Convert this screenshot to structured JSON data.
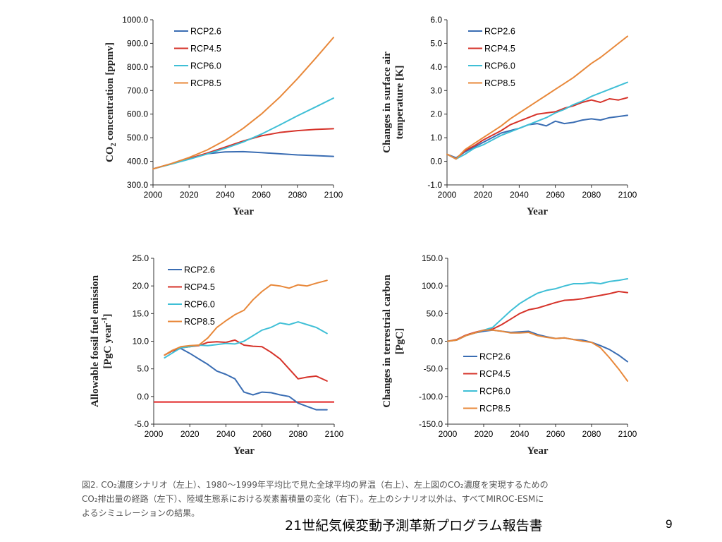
{
  "colors": {
    "RCP2.6": "#3a6db3",
    "RCP4.5": "#d6332a",
    "RCP6.0": "#3fbfd6",
    "RCP8.5": "#e8883a",
    "zero_line": "#e02020",
    "axis": "#333333"
  },
  "chart_data": [
    {
      "type": "line",
      "ylabel": "CO2 concentration [ppmv]",
      "xlabel": "Year",
      "xlim": [
        2000,
        2100
      ],
      "ylim": [
        300,
        1000
      ],
      "xticks": [
        "2000",
        "2020",
        "2040",
        "2060",
        "2080",
        "2100"
      ],
      "yticks": [
        "300.0",
        "400.0",
        "500.0",
        "600.0",
        "700.0",
        "800.0",
        "900.0",
        "1000.0"
      ],
      "legend_position": "top-left",
      "grid": false,
      "x": [
        2000,
        2010,
        2020,
        2030,
        2040,
        2050,
        2060,
        2070,
        2080,
        2090,
        2100
      ],
      "series": [
        {
          "name": "RCP2.6",
          "values": [
            368,
            389,
            412,
            432,
            440,
            441,
            437,
            432,
            427,
            424,
            421
          ]
        },
        {
          "name": "RCP4.5",
          "values": [
            368,
            389,
            412,
            435,
            460,
            486,
            508,
            522,
            530,
            535,
            538
          ]
        },
        {
          "name": "RCP6.0",
          "values": [
            368,
            388,
            409,
            431,
            455,
            482,
            515,
            553,
            593,
            630,
            668
          ]
        },
        {
          "name": "RCP8.5",
          "values": [
            368,
            390,
            416,
            448,
            489,
            540,
            600,
            670,
            750,
            836,
            925
          ]
        }
      ]
    },
    {
      "type": "line",
      "ylabel": "Changes in surface air temperature [K]",
      "xlabel": "Year",
      "xlim": [
        2000,
        2100
      ],
      "ylim": [
        -1,
        6
      ],
      "xticks": [
        "2000",
        "2020",
        "2040",
        "2060",
        "2080",
        "2100"
      ],
      "yticks": [
        "-1.0",
        "0.0",
        "1.0",
        "2.0",
        "3.0",
        "4.0",
        "5.0",
        "6.0"
      ],
      "legend_position": "top-left",
      "grid": false,
      "x": [
        2000,
        2005,
        2010,
        2015,
        2020,
        2025,
        2030,
        2035,
        2040,
        2045,
        2050,
        2055,
        2060,
        2065,
        2070,
        2075,
        2080,
        2085,
        2090,
        2095,
        2100
      ],
      "series": [
        {
          "name": "RCP2.6",
          "values": [
            0.3,
            0.15,
            0.4,
            0.6,
            0.8,
            1.0,
            1.2,
            1.3,
            1.4,
            1.55,
            1.6,
            1.5,
            1.7,
            1.6,
            1.65,
            1.75,
            1.8,
            1.75,
            1.85,
            1.9,
            1.95
          ]
        },
        {
          "name": "RCP4.5",
          "values": [
            0.3,
            0.1,
            0.45,
            0.65,
            0.9,
            1.1,
            1.3,
            1.55,
            1.7,
            1.85,
            2.0,
            2.05,
            2.1,
            2.25,
            2.35,
            2.5,
            2.6,
            2.5,
            2.65,
            2.6,
            2.7
          ]
        },
        {
          "name": "RCP6.0",
          "values": [
            0.3,
            0.1,
            0.3,
            0.55,
            0.7,
            0.9,
            1.1,
            1.25,
            1.4,
            1.55,
            1.7,
            1.85,
            2.05,
            2.2,
            2.4,
            2.55,
            2.75,
            2.9,
            3.05,
            3.2,
            3.35
          ]
        },
        {
          "name": "RCP8.5",
          "values": [
            0.3,
            0.1,
            0.5,
            0.75,
            1.0,
            1.25,
            1.5,
            1.8,
            2.05,
            2.3,
            2.55,
            2.8,
            3.05,
            3.3,
            3.55,
            3.85,
            4.15,
            4.4,
            4.7,
            5.0,
            5.3
          ]
        }
      ]
    },
    {
      "type": "line",
      "ylabel": "Allowable fossil fuel emission [PgC year-1]",
      "xlabel": "Year",
      "xlim": [
        2000,
        2100
      ],
      "ylim": [
        -5,
        25
      ],
      "xticks": [
        "2000",
        "2020",
        "2040",
        "2060",
        "2080",
        "2100"
      ],
      "yticks": [
        "-5.0",
        "0.0",
        "5.0",
        "10.0",
        "15.0",
        "20.0",
        "25.0"
      ],
      "legend_position": "top-left",
      "grid": false,
      "reference_line_y": -1,
      "x": [
        2006,
        2010,
        2015,
        2020,
        2025,
        2030,
        2035,
        2040,
        2045,
        2050,
        2055,
        2060,
        2065,
        2070,
        2075,
        2080,
        2085,
        2090,
        2096
      ],
      "series": [
        {
          "name": "RCP2.6",
          "values": [
            7.5,
            8.2,
            8.7,
            7.8,
            6.8,
            5.8,
            4.6,
            4.0,
            3.2,
            0.8,
            0.3,
            0.8,
            0.7,
            0.3,
            0.0,
            -1.2,
            -1.8,
            -2.4,
            -2.4
          ]
        },
        {
          "name": "RCP4.5",
          "values": [
            7.5,
            8.2,
            8.8,
            9.0,
            9.2,
            9.8,
            9.9,
            9.8,
            10.2,
            9.3,
            9.1,
            9.0,
            8.0,
            6.8,
            5.0,
            3.2,
            3.5,
            3.7,
            2.8
          ]
        },
        {
          "name": "RCP6.0",
          "values": [
            7.0,
            7.8,
            8.8,
            9.0,
            9.3,
            9.2,
            9.4,
            9.6,
            9.5,
            10.0,
            11.0,
            12.0,
            12.5,
            13.3,
            13.0,
            13.5,
            13.0,
            12.5,
            11.4
          ]
        },
        {
          "name": "RCP8.5",
          "values": [
            7.5,
            8.3,
            9.0,
            9.2,
            9.3,
            10.6,
            12.5,
            13.7,
            14.8,
            15.6,
            17.5,
            19.0,
            20.2,
            20.0,
            19.6,
            20.2,
            20.0,
            20.5,
            21.0
          ]
        }
      ]
    },
    {
      "type": "line",
      "ylabel": "Changes in terrestrial carbon [PgC]",
      "xlabel": "Year",
      "xlim": [
        2000,
        2100
      ],
      "ylim": [
        -150,
        150
      ],
      "xticks": [
        "2000",
        "2020",
        "2040",
        "2060",
        "2080",
        "2100"
      ],
      "yticks": [
        "-150.0",
        "-100.0",
        "-50.0",
        "0.0",
        "50.0",
        "100.0",
        "150.0"
      ],
      "legend_position": "bottom-left",
      "grid": false,
      "x": [
        2000,
        2005,
        2010,
        2015,
        2020,
        2025,
        2030,
        2035,
        2040,
        2045,
        2050,
        2055,
        2060,
        2065,
        2070,
        2075,
        2080,
        2085,
        2090,
        2095,
        2100
      ],
      "series": [
        {
          "name": "RCP2.6",
          "values": [
            0,
            2,
            10,
            15,
            18,
            20,
            18,
            16,
            17,
            18,
            12,
            8,
            5,
            6,
            3,
            2,
            -2,
            -8,
            -15,
            -25,
            -37
          ]
        },
        {
          "name": "RCP4.5",
          "values": [
            0,
            3,
            11,
            16,
            20,
            22,
            30,
            40,
            50,
            57,
            60,
            65,
            70,
            74,
            75,
            77,
            80,
            83,
            86,
            90,
            88
          ]
        },
        {
          "name": "RCP6.0",
          "values": [
            0,
            2,
            10,
            15,
            20,
            25,
            40,
            55,
            68,
            78,
            87,
            92,
            95,
            100,
            104,
            104,
            106,
            104,
            108,
            110,
            113
          ]
        },
        {
          "name": "RCP8.5",
          "values": [
            0,
            2,
            10,
            15,
            20,
            20,
            18,
            15,
            15,
            16,
            10,
            7,
            5,
            6,
            3,
            0,
            -2,
            -12,
            -30,
            -50,
            -72
          ]
        }
      ]
    }
  ],
  "caption_lines": [
    "図2. CO₂濃度シナリオ（左上）、1980～1999年平均比で見た全球平均の昇温（右上）、左上図のCO₂濃度を実現するための",
    "CO₂排出量の経路（左下）、陸域生態系における炭素蓄積量の変化（右下）。左上のシナリオ以外は、すべてMIROC-ESMに",
    "よるシミュレーションの結果。"
  ],
  "footer_title": "21世紀気候変動予測革新プログラム報告書",
  "page_number": "9"
}
